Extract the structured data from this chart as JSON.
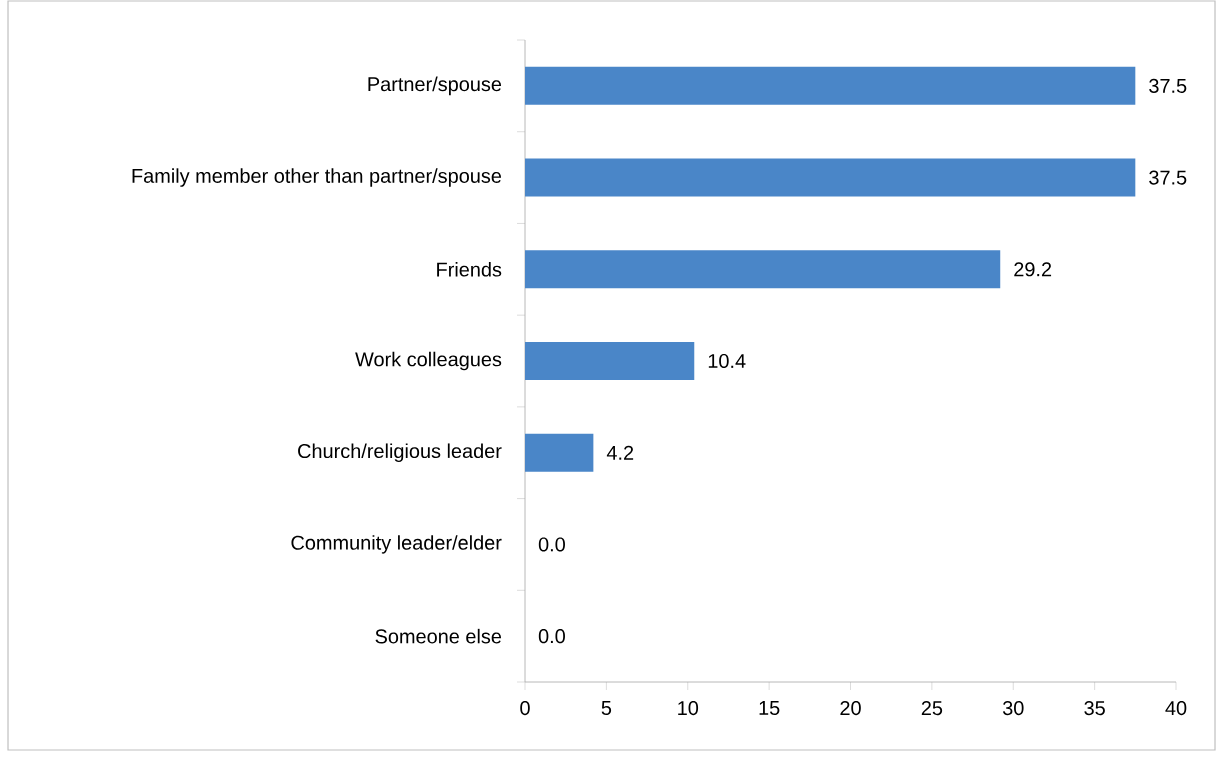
{
  "chart_data": {
    "type": "bar",
    "orientation": "horizontal",
    "categories": [
      "Partner/spouse",
      "Family member other than partner/spouse",
      "Friends",
      "Work colleagues",
      "Church/religious leader",
      "Community leader/elder",
      "Someone else"
    ],
    "values": [
      37.5,
      37.5,
      29.2,
      10.4,
      4.2,
      0.0,
      0.0
    ],
    "value_labels": [
      "37.5",
      "37.5",
      "29.2",
      "10.4",
      "4.2",
      "0.0",
      "0.0"
    ],
    "color": "#4a86c8",
    "xlim": [
      0,
      40
    ],
    "xticks": [
      0,
      5,
      10,
      15,
      20,
      25,
      30,
      35,
      40
    ],
    "grid": false
  }
}
